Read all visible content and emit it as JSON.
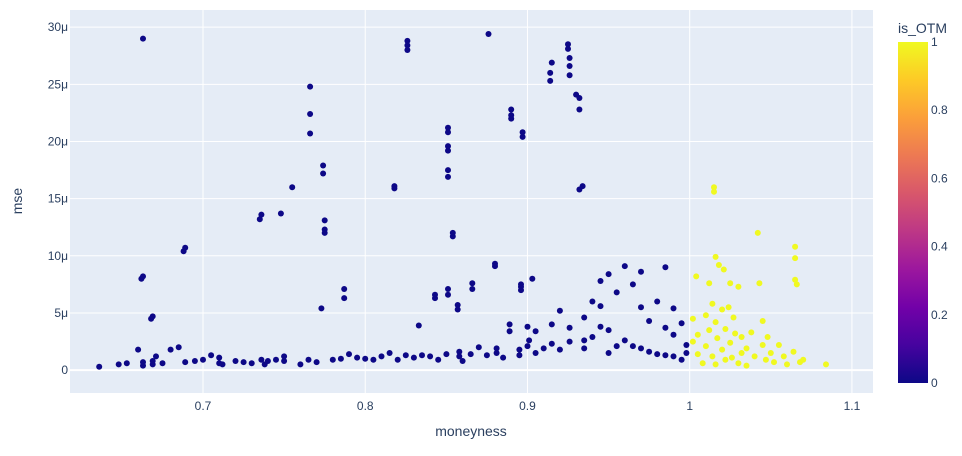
{
  "chart_data": {
    "type": "scatter",
    "title": "",
    "xlabel": "moneyness",
    "ylabel": "mse",
    "xlim": [
      0.618,
      1.113
    ],
    "ylim": [
      -2e-06,
      3.15e-05
    ],
    "x_ticks": [
      {
        "value": 0.7,
        "label": "0.7"
      },
      {
        "value": 0.8,
        "label": "0.8"
      },
      {
        "value": 0.9,
        "label": "0.9"
      },
      {
        "value": 1.0,
        "label": "1"
      },
      {
        "value": 1.1,
        "label": "1.1"
      }
    ],
    "y_ticks": [
      {
        "value": 0,
        "label": "0"
      },
      {
        "value": 5e-06,
        "label": "5μ"
      },
      {
        "value": 1e-05,
        "label": "10μ"
      },
      {
        "value": 1.5e-05,
        "label": "15μ"
      },
      {
        "value": 2e-05,
        "label": "20μ"
      },
      {
        "value": 2.5e-05,
        "label": "25μ"
      },
      {
        "value": 3e-05,
        "label": "30μ"
      }
    ],
    "grid": true,
    "colorbar": {
      "title": "is_OTM",
      "range": [
        0,
        1
      ],
      "ticks": [
        {
          "value": 0,
          "label": "0"
        },
        {
          "value": 0.2,
          "label": "0.2"
        },
        {
          "value": 0.4,
          "label": "0.4"
        },
        {
          "value": 0.6,
          "label": "0.6"
        },
        {
          "value": 0.8,
          "label": "0.8"
        },
        {
          "value": 1,
          "label": "1"
        }
      ],
      "colorscale": [
        "#0d0887",
        "#46039f",
        "#7201a8",
        "#9c179e",
        "#bd3786",
        "#d8576b",
        "#ed7953",
        "#fb9f3a",
        "#fdca26",
        "#f0f921"
      ]
    },
    "series": [
      {
        "color_value": 0,
        "color": "#0d0887",
        "x": [
          0.636,
          0.648,
          0.653,
          0.66,
          0.662,
          0.663,
          0.663,
          0.663,
          0.663,
          0.668,
          0.669,
          0.669,
          0.669,
          0.671,
          0.675,
          0.68,
          0.685,
          0.688,
          0.689,
          0.689,
          0.695,
          0.7,
          0.705,
          0.71,
          0.71,
          0.712,
          0.72,
          0.725,
          0.73,
          0.735,
          0.736,
          0.736,
          0.738,
          0.74,
          0.745,
          0.748,
          0.75,
          0.75,
          0.755,
          0.76,
          0.765,
          0.766,
          0.766,
          0.766,
          0.77,
          0.773,
          0.774,
          0.774,
          0.775,
          0.775,
          0.775,
          0.78,
          0.785,
          0.787,
          0.787,
          0.79,
          0.795,
          0.8,
          0.805,
          0.81,
          0.815,
          0.818,
          0.818,
          0.82,
          0.825,
          0.826,
          0.826,
          0.826,
          0.83,
          0.833,
          0.835,
          0.84,
          0.843,
          0.843,
          0.845,
          0.85,
          0.851,
          0.851,
          0.851,
          0.851,
          0.851,
          0.851,
          0.851,
          0.851,
          0.854,
          0.854,
          0.857,
          0.857,
          0.858,
          0.858,
          0.86,
          0.865,
          0.866,
          0.866,
          0.87,
          0.875,
          0.876,
          0.88,
          0.88,
          0.881,
          0.881,
          0.885,
          0.889,
          0.889,
          0.89,
          0.89,
          0.89,
          0.895,
          0.895,
          0.896,
          0.896,
          0.896,
          0.897,
          0.897,
          0.9,
          0.9,
          0.901,
          0.903,
          0.905,
          0.905,
          0.91,
          0.914,
          0.914,
          0.915,
          0.915,
          0.915,
          0.92,
          0.92,
          0.925,
          0.925,
          0.926,
          0.926,
          0.926,
          0.926,
          0.926,
          0.93,
          0.932,
          0.932,
          0.932,
          0.934,
          0.935,
          0.935,
          0.935,
          0.94,
          0.94,
          0.945,
          0.945,
          0.945,
          0.95,
          0.95,
          0.95,
          0.955,
          0.955,
          0.96,
          0.96,
          0.965,
          0.965,
          0.97,
          0.97,
          0.97,
          0.975,
          0.975,
          0.98,
          0.98,
          0.985,
          0.985,
          0.985,
          0.99,
          0.99,
          0.99,
          0.995,
          0.995,
          0.998,
          0.998
        ],
        "y": [
          3e-07,
          5e-07,
          6e-07,
          1.8e-06,
          8e-06,
          8.2e-06,
          7e-07,
          2.9e-05,
          4e-07,
          4.5e-06,
          4.7e-06,
          8e-07,
          5e-07,
          1.2e-06,
          6e-07,
          1.8e-06,
          2e-06,
          1.04e-05,
          1.07e-05,
          7e-07,
          8e-07,
          9e-07,
          1.3e-06,
          6e-07,
          1.1e-06,
          5e-07,
          8e-07,
          7e-07,
          6e-07,
          1.32e-05,
          1.36e-05,
          9e-07,
          5e-07,
          8e-07,
          9e-07,
          1.37e-05,
          8e-07,
          1.2e-06,
          1.6e-05,
          5e-07,
          9e-07,
          2.07e-05,
          2.24e-05,
          2.48e-05,
          7e-07,
          5.4e-06,
          1.72e-05,
          1.79e-05,
          1.2e-05,
          1.23e-05,
          1.31e-05,
          9e-07,
          1e-06,
          6.3e-06,
          7.1e-06,
          1.4e-06,
          1.1e-06,
          1e-06,
          9e-07,
          1.2e-06,
          1.5e-06,
          1.59e-05,
          1.61e-05,
          9e-07,
          1.3e-06,
          2.8e-05,
          2.84e-05,
          2.88e-05,
          1.1e-06,
          3.9e-06,
          1.3e-06,
          1.2e-06,
          6.3e-06,
          6.6e-06,
          9e-07,
          1.4e-06,
          1.69e-05,
          1.75e-05,
          1.92e-05,
          1.96e-05,
          2.08e-05,
          2.12e-05,
          6.6e-06,
          7.1e-06,
          1.17e-05,
          1.2e-05,
          5.3e-06,
          5.7e-06,
          1.2e-06,
          1.6e-06,
          8e-07,
          1.4e-06,
          7.1e-06,
          7.6e-06,
          2e-06,
          1.3e-06,
          2.94e-05,
          9.1e-06,
          9.3e-06,
          1.9e-06,
          1.5e-06,
          1.1e-06,
          3.4e-06,
          4e-06,
          2.2e-05,
          2.23e-05,
          2.28e-05,
          1.3e-06,
          1.8e-06,
          7e-06,
          7.3e-06,
          7.5e-06,
          2.04e-05,
          2.08e-05,
          2.1e-06,
          3.8e-06,
          2.6e-06,
          8e-06,
          1.5e-06,
          3.4e-06,
          1.9e-06,
          2.53e-05,
          2.6e-05,
          2.69e-05,
          4e-06,
          2.3e-06,
          5.2e-06,
          1.8e-06,
          2.81e-05,
          2.85e-05,
          2.58e-05,
          2.66e-05,
          2.73e-05,
          3.7e-06,
          2.5e-06,
          2.41e-05,
          2.28e-05,
          2.38e-05,
          1.58e-05,
          1.61e-05,
          2.6e-06,
          4.6e-06,
          1.9e-06,
          6e-06,
          2.9e-06,
          3.8e-06,
          5.6e-06,
          7.8e-06,
          8.4e-06,
          1.5e-06,
          3.5e-06,
          6.8e-06,
          2.1e-06,
          9.1e-06,
          2.6e-06,
          7.5e-06,
          2.1e-06,
          5.5e-06,
          1.9e-06,
          8.6e-06,
          1.6e-06,
          4.3e-06,
          1.4e-06,
          6e-06,
          1.3e-06,
          3.7e-06,
          9e-06,
          1.2e-06,
          5.4e-06,
          3.1e-06,
          9e-07,
          4.1e-06,
          2.2e-06,
          1.5e-06
        ]
      },
      {
        "color_value": 1,
        "color": "#f0f921",
        "x": [
          1.002,
          1.002,
          1.004,
          1.005,
          1.005,
          1.008,
          1.01,
          1.01,
          1.012,
          1.012,
          1.014,
          1.014,
          1.015,
          1.015,
          1.016,
          1.016,
          1.016,
          1.017,
          1.018,
          1.02,
          1.02,
          1.021,
          1.022,
          1.022,
          1.024,
          1.025,
          1.025,
          1.026,
          1.027,
          1.028,
          1.03,
          1.03,
          1.032,
          1.032,
          1.035,
          1.035,
          1.038,
          1.04,
          1.042,
          1.043,
          1.045,
          1.045,
          1.047,
          1.048,
          1.05,
          1.052,
          1.055,
          1.058,
          1.06,
          1.064,
          1.065,
          1.065,
          1.065,
          1.066,
          1.068,
          1.07,
          1.084
        ],
        "y": [
          4.5e-06,
          2.5e-06,
          8.2e-06,
          3.1e-06,
          1.4e-06,
          6e-07,
          4.8e-06,
          2.1e-06,
          7.6e-06,
          3.5e-06,
          1.2e-06,
          5.8e-06,
          1.56e-05,
          1.6e-05,
          9.9e-06,
          4.2e-06,
          5e-07,
          2.8e-06,
          9.2e-06,
          5.3e-06,
          1.8e-06,
          8.8e-06,
          3.6e-06,
          9e-07,
          5.5e-06,
          7.6e-06,
          2.4e-06,
          1.1e-06,
          4.6e-06,
          3.2e-06,
          7.3e-06,
          6e-07,
          2.9e-06,
          1.5e-06,
          1.9e-06,
          4e-07,
          3.3e-06,
          1.2e-06,
          1.2e-05,
          7.6e-06,
          4.3e-06,
          2.2e-06,
          9e-07,
          2.9e-06,
          1.5e-06,
          7e-07,
          2.2e-06,
          1.2e-06,
          5e-07,
          1.6e-06,
          1.08e-05,
          9.8e-06,
          7.9e-06,
          7.5e-06,
          7e-07,
          9e-07,
          5e-07
        ]
      }
    ]
  }
}
